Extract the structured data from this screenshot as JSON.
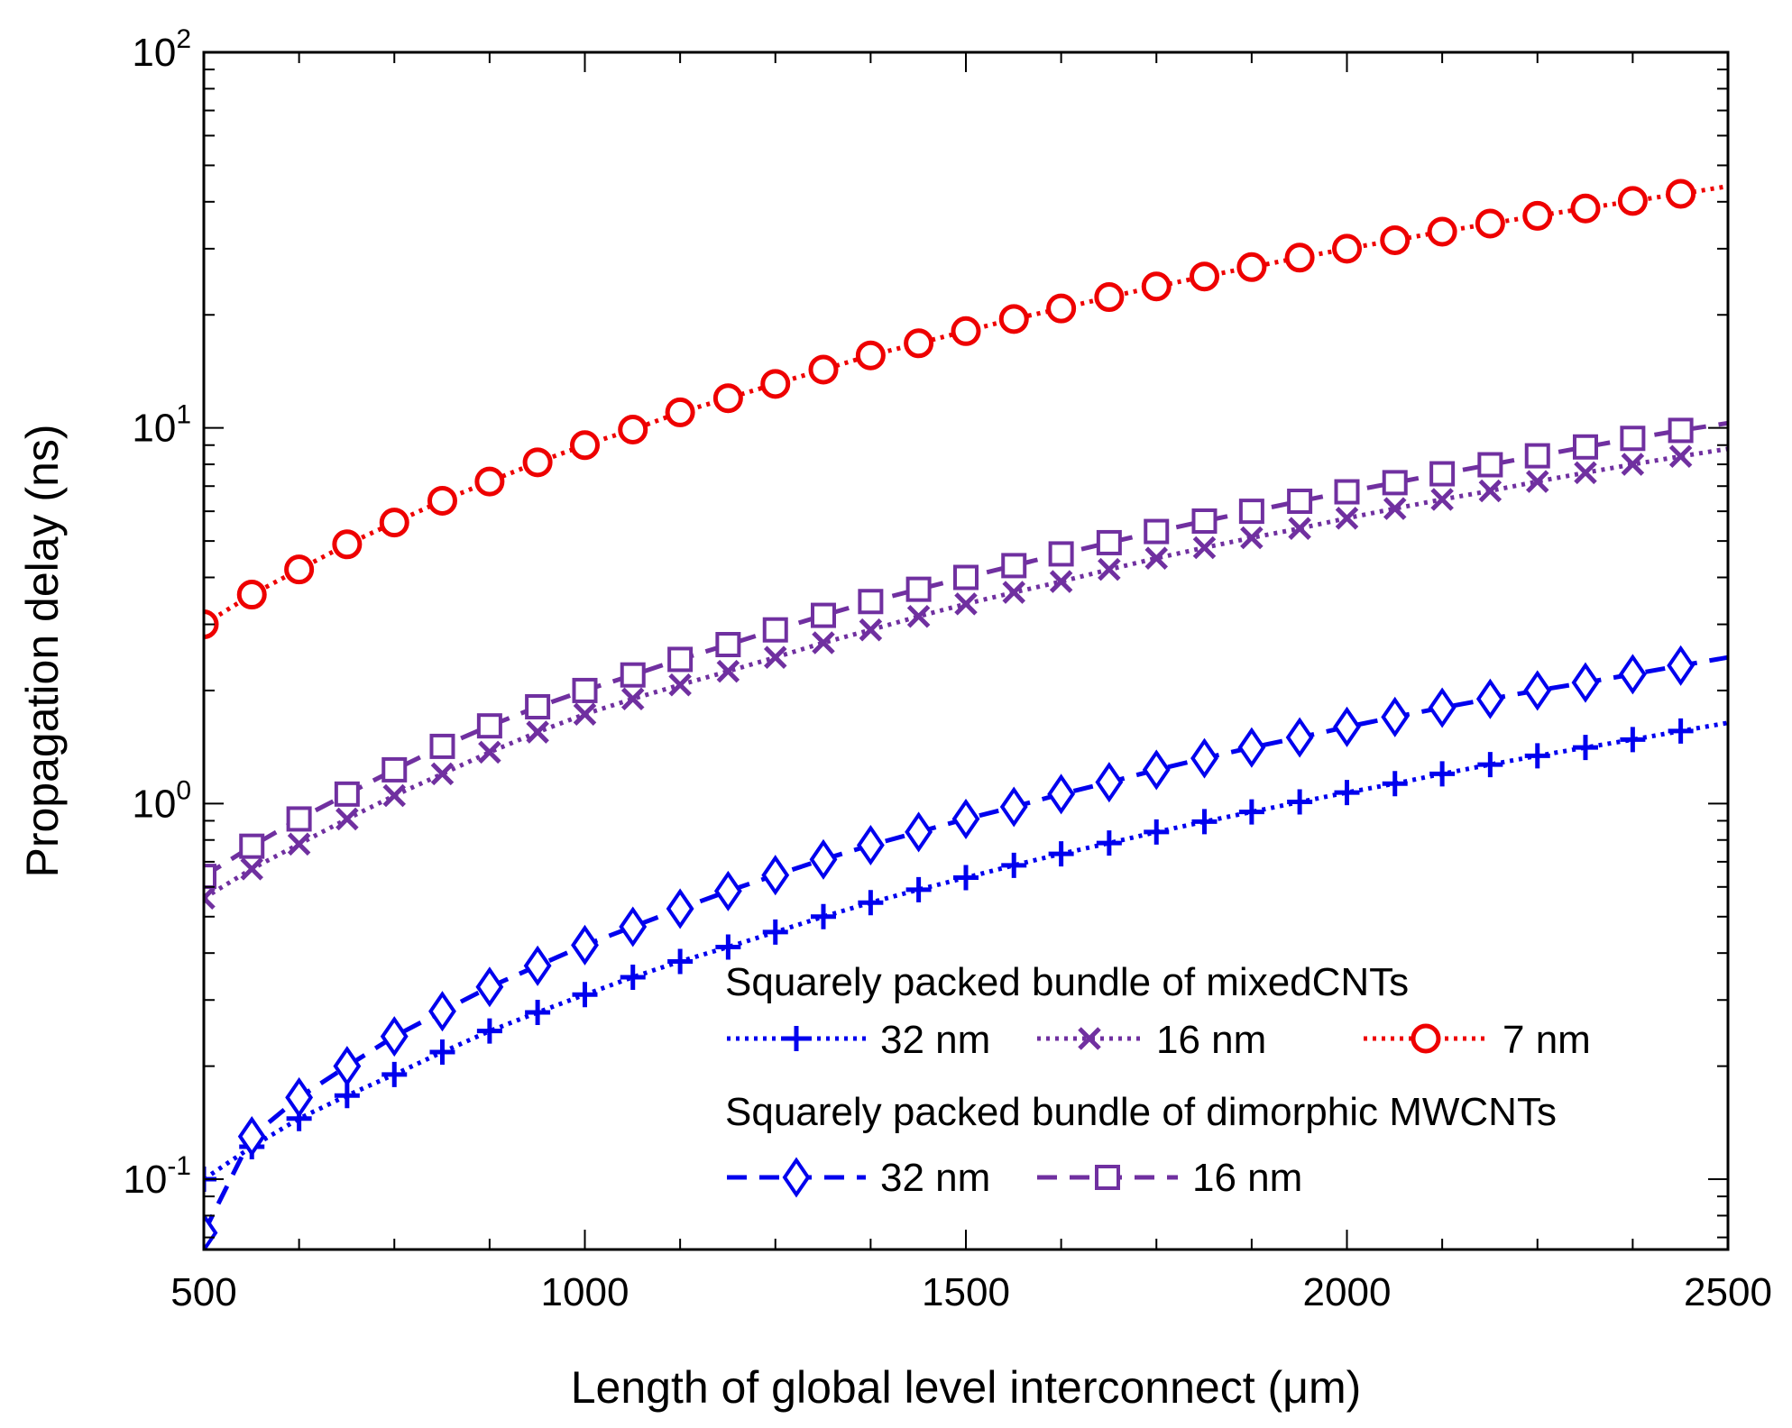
{
  "chart_data": {
    "type": "line",
    "xlabel": "Length of global level interconnect (μm)",
    "ylabel": "Propagation delay (ns)",
    "xlim": [
      500,
      2500
    ],
    "ylim": [
      0.065,
      100
    ],
    "yscale": "log",
    "x_ticks": [
      500,
      1000,
      1500,
      2000,
      2500
    ],
    "y_ticks": [
      {
        "value": 0.1,
        "base": "10",
        "exp": "-1"
      },
      {
        "value": 1,
        "base": "10",
        "exp": "0"
      },
      {
        "value": 10,
        "base": "10",
        "exp": "1"
      },
      {
        "value": 100,
        "base": "10",
        "exp": "2"
      }
    ],
    "legend": {
      "groups": [
        {
          "title": "Squarely packed bundle of mixedCNTs",
          "entries": [
            "32 nm",
            "16 nm",
            "7 nm"
          ]
        },
        {
          "title": "Squarely packed bundle of dimorphic MWCNTs",
          "entries": [
            "32 nm",
            "16 nm"
          ]
        }
      ],
      "position": "lower-right"
    },
    "series": [
      {
        "name": "mixedCNT 32 nm",
        "color": "#0000ee",
        "marker": "plus",
        "line": "dotted",
        "x": [
          500,
          563,
          625,
          688,
          750,
          813,
          875,
          938,
          1000,
          1063,
          1125,
          1188,
          1250,
          1313,
          1375,
          1438,
          1500,
          1563,
          1625,
          1688,
          1750,
          1813,
          1875,
          1938,
          2000,
          2063,
          2125,
          2188,
          2250,
          2313,
          2375,
          2438,
          2500
        ],
        "y": [
          0.1,
          0.122,
          0.145,
          0.167,
          0.19,
          0.218,
          0.248,
          0.278,
          0.31,
          0.345,
          0.38,
          0.415,
          0.455,
          0.5,
          0.545,
          0.59,
          0.635,
          0.685,
          0.735,
          0.785,
          0.84,
          0.895,
          0.95,
          1.01,
          1.07,
          1.13,
          1.2,
          1.27,
          1.34,
          1.41,
          1.48,
          1.56,
          1.64
        ]
      },
      {
        "name": "mixedCNT 16 nm",
        "color": "#7030a0",
        "marker": "x",
        "line": "dotted",
        "x": [
          500,
          563,
          625,
          688,
          750,
          813,
          875,
          938,
          1000,
          1063,
          1125,
          1188,
          1250,
          1313,
          1375,
          1438,
          1500,
          1563,
          1625,
          1688,
          1750,
          1813,
          1875,
          1938,
          2000,
          2063,
          2125,
          2188,
          2250,
          2313,
          2375,
          2438,
          2500
        ],
        "y": [
          0.56,
          0.67,
          0.78,
          0.91,
          1.05,
          1.2,
          1.37,
          1.55,
          1.73,
          1.9,
          2.07,
          2.25,
          2.45,
          2.68,
          2.9,
          3.15,
          3.4,
          3.65,
          3.9,
          4.2,
          4.5,
          4.8,
          5.1,
          5.4,
          5.75,
          6.1,
          6.45,
          6.8,
          7.2,
          7.6,
          8.0,
          8.4,
          8.8
        ]
      },
      {
        "name": "mixedCNT 7 nm",
        "color": "#ee0000",
        "marker": "circle",
        "line": "dotted",
        "x": [
          500,
          563,
          625,
          688,
          750,
          813,
          875,
          938,
          1000,
          1063,
          1125,
          1188,
          1250,
          1313,
          1375,
          1438,
          1500,
          1563,
          1625,
          1688,
          1750,
          1813,
          1875,
          1938,
          2000,
          2063,
          2125,
          2188,
          2250,
          2313,
          2375,
          2438,
          2500
        ],
        "y": [
          3.0,
          3.6,
          4.2,
          4.9,
          5.6,
          6.4,
          7.2,
          8.1,
          9.0,
          9.9,
          11.0,
          12.0,
          13.1,
          14.3,
          15.6,
          16.8,
          18.1,
          19.5,
          20.8,
          22.3,
          23.8,
          25.3,
          26.8,
          28.4,
          30.0,
          31.6,
          33.3,
          35.0,
          36.7,
          38.4,
          40.2,
          42.0,
          44.0
        ]
      },
      {
        "name": "dimorphic MWCNT 32 nm",
        "color": "#0000ee",
        "marker": "diamond",
        "line": "dashed",
        "x": [
          500,
          563,
          625,
          688,
          750,
          813,
          875,
          938,
          1000,
          1063,
          1125,
          1188,
          1250,
          1313,
          1375,
          1438,
          1500,
          1563,
          1625,
          1688,
          1750,
          1813,
          1875,
          1938,
          2000,
          2063,
          2125,
          2188,
          2250,
          2313,
          2375,
          2438,
          2500
        ],
        "y": [
          0.072,
          0.13,
          0.165,
          0.2,
          0.24,
          0.28,
          0.325,
          0.37,
          0.42,
          0.47,
          0.525,
          0.585,
          0.645,
          0.71,
          0.775,
          0.84,
          0.91,
          0.98,
          1.06,
          1.14,
          1.23,
          1.32,
          1.41,
          1.5,
          1.6,
          1.7,
          1.8,
          1.9,
          2.0,
          2.1,
          2.21,
          2.33,
          2.45
        ]
      },
      {
        "name": "dimorphic MWCNT 16 nm",
        "color": "#7030a0",
        "marker": "square",
        "line": "dashed",
        "x": [
          500,
          563,
          625,
          688,
          750,
          813,
          875,
          938,
          1000,
          1063,
          1125,
          1188,
          1250,
          1313,
          1375,
          1438,
          1500,
          1563,
          1625,
          1688,
          1750,
          1813,
          1875,
          1938,
          2000,
          2063,
          2125,
          2188,
          2250,
          2313,
          2375,
          2438,
          2500
        ],
        "y": [
          0.64,
          0.77,
          0.91,
          1.06,
          1.23,
          1.42,
          1.61,
          1.81,
          2.0,
          2.2,
          2.42,
          2.65,
          2.9,
          3.17,
          3.45,
          3.72,
          4.0,
          4.3,
          4.62,
          4.95,
          5.3,
          5.65,
          6.0,
          6.38,
          6.76,
          7.15,
          7.55,
          7.98,
          8.43,
          8.9,
          9.38,
          9.85,
          10.3
        ]
      }
    ]
  }
}
